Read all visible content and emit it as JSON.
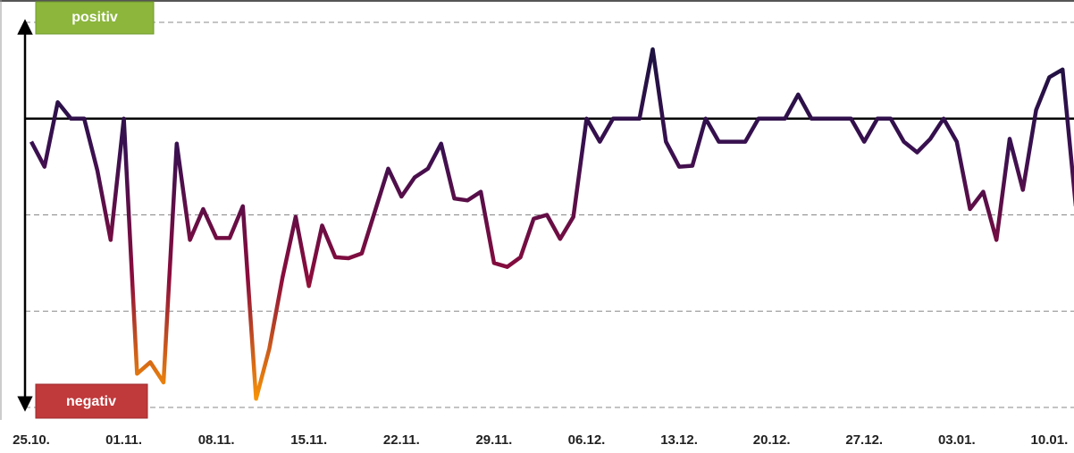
{
  "chart_data": {
    "type": "line",
    "annotations": {
      "top": "positiv",
      "bottom": "negativ"
    },
    "categories": [
      "25.10.",
      null,
      null,
      null,
      null,
      null,
      null,
      "01.11.",
      null,
      null,
      null,
      null,
      null,
      null,
      "08.11.",
      null,
      null,
      null,
      null,
      null,
      null,
      "15.11.",
      null,
      null,
      null,
      null,
      null,
      null,
      "22.11.",
      null,
      null,
      null,
      null,
      null,
      null,
      "29.11.",
      null,
      null,
      null,
      null,
      null,
      null,
      "06.12.",
      null,
      null,
      null,
      null,
      null,
      null,
      "13.12.",
      null,
      null,
      null,
      null,
      null,
      null,
      "20.12.",
      null,
      null,
      null,
      null,
      null,
      null,
      "27.12.",
      null,
      null,
      null,
      null,
      null,
      null,
      "03.01.",
      null,
      null,
      null,
      null,
      null,
      null,
      "10.01.",
      null,
      null
    ],
    "series": [
      {
        "colors": [
          "#15123c",
          "#3a1050",
          "#8c0c3c",
          "#ff9c00"
        ],
        "values": [
          -0.24,
          -0.5,
          0.17,
          0,
          0,
          -0.54,
          -1.26,
          0,
          -2.65,
          -2.53,
          -2.74,
          -0.26,
          -1.26,
          -0.94,
          -1.24,
          -1.24,
          -0.91,
          -2.91,
          -2.39,
          -1.65,
          -1.02,
          -1.74,
          -1.11,
          -1.44,
          -1.45,
          -1.4,
          -0.96,
          -0.52,
          -0.81,
          -0.61,
          -0.52,
          -0.26,
          -0.83,
          -0.85,
          -0.76,
          -1.5,
          -1.54,
          -1.44,
          -1.04,
          -1,
          -1.25,
          -1.02,
          0,
          -0.24,
          0,
          0,
          0,
          0.72,
          -0.24,
          -0.5,
          -0.49,
          0,
          -0.24,
          -0.24,
          -0.24,
          0,
          0,
          0,
          0.25,
          0,
          0,
          0,
          0,
          -0.24,
          0,
          0,
          -0.24,
          -0.35,
          -0.21,
          0,
          -0.24,
          -0.94,
          -0.76,
          -1.26,
          -0.21,
          -0.74,
          0.09,
          0.43,
          0.51,
          -0.91
        ]
      }
    ],
    "ylim": [
      -3,
      1
    ],
    "yticks": [
      -3,
      -2,
      -1,
      0,
      1
    ],
    "grid": true
  }
}
